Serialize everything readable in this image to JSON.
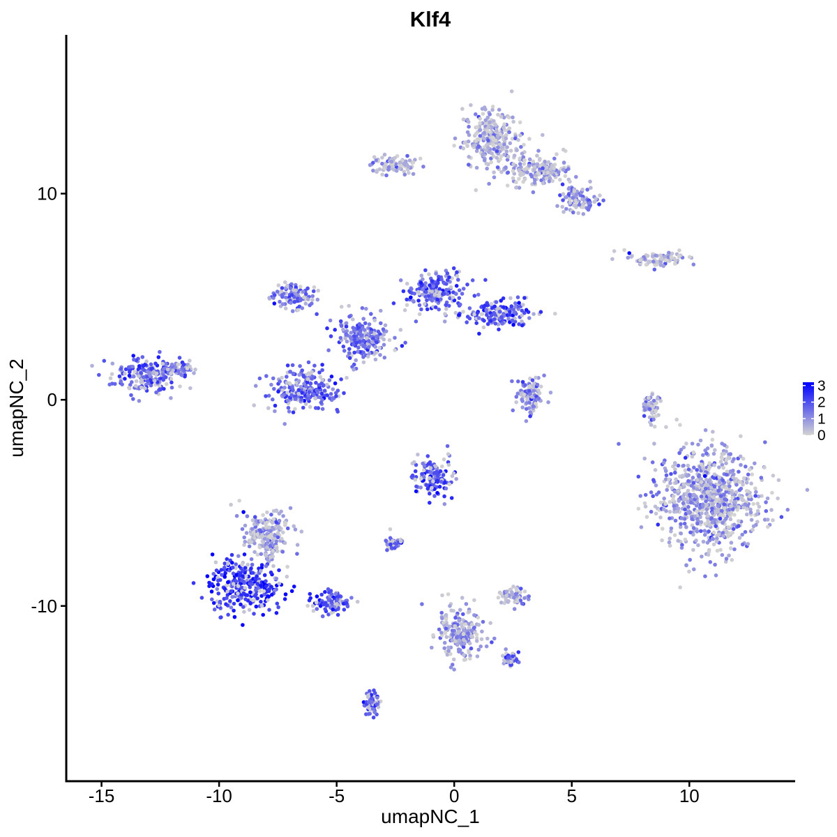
{
  "chart_data": {
    "type": "scatter",
    "title": "Klf4",
    "xlabel": "umapNC_1",
    "ylabel": "umapNC_2",
    "xlim": [
      -16.5,
      14.5
    ],
    "ylim": [
      -18.5,
      17.7
    ],
    "xticks": [
      -15,
      -10,
      -5,
      0,
      5,
      10
    ],
    "yticks": [
      -10,
      0,
      10
    ],
    "grid": false,
    "legend": {
      "placement": "right",
      "ticks": [
        0,
        1,
        2,
        3
      ],
      "color_low": "#d3d3d3",
      "color_high": "#0000ff",
      "range": [
        0,
        3.2
      ]
    },
    "clusters": [
      {
        "name": "",
        "center": [
          -13.2,
          1.1
        ],
        "spread": [
          1.2,
          0.8
        ],
        "expr": 1.8
      },
      {
        "name": "",
        "center": [
          -11.8,
          1.5
        ],
        "spread": [
          0.7,
          0.4
        ],
        "expr": 1.5
      },
      {
        "name": "",
        "center": [
          -6.4,
          0.5
        ],
        "spread": [
          1.3,
          0.9
        ],
        "expr": 1.7
      },
      {
        "name": "",
        "center": [
          -0.8,
          5.2
        ],
        "spread": [
          1.1,
          0.9
        ],
        "expr": 1.8
      },
      {
        "name": "",
        "center": [
          1.9,
          4.2
        ],
        "spread": [
          1.3,
          0.6
        ],
        "expr": 1.9
      },
      {
        "name": "",
        "center": [
          -6.8,
          5.0
        ],
        "spread": [
          0.8,
          0.6
        ],
        "expr": 1.4
      },
      {
        "name": "",
        "center": [
          -3.8,
          3.0
        ],
        "spread": [
          1.1,
          1.0
        ],
        "expr": 1.5
      },
      {
        "name": "",
        "center": [
          1.6,
          12.6
        ],
        "spread": [
          1.1,
          1.3
        ],
        "expr": 0.6
      },
      {
        "name": "",
        "center": [
          3.6,
          11.2
        ],
        "spread": [
          1.3,
          0.7
        ],
        "expr": 0.7
      },
      {
        "name": "",
        "center": [
          5.3,
          9.7
        ],
        "spread": [
          0.7,
          0.6
        ],
        "expr": 1.2
      },
      {
        "name": "",
        "center": [
          -2.6,
          11.4
        ],
        "spread": [
          0.9,
          0.4
        ],
        "expr": 0.6
      },
      {
        "name": "",
        "center": [
          8.6,
          6.8
        ],
        "spread": [
          1.2,
          0.3
        ],
        "expr": 0.5
      },
      {
        "name": "",
        "center": [
          3.2,
          0.2
        ],
        "spread": [
          0.6,
          0.8
        ],
        "expr": 1.2
      },
      {
        "name": "",
        "center": [
          10.9,
          -4.8
        ],
        "spread": [
          2.1,
          2.3
        ],
        "expr": 0.9
      },
      {
        "name": "",
        "center": [
          -0.9,
          -3.7
        ],
        "spread": [
          0.8,
          0.8
        ],
        "expr": 2.0
      },
      {
        "name": "",
        "center": [
          -2.6,
          -6.9
        ],
        "spread": [
          0.4,
          0.3
        ],
        "expr": 1.6
      },
      {
        "name": "",
        "center": [
          -8.9,
          -9.0
        ],
        "spread": [
          1.4,
          1.2
        ],
        "expr": 2.5
      },
      {
        "name": "",
        "center": [
          -8.0,
          -6.6
        ],
        "spread": [
          1.0,
          1.1
        ],
        "expr": 0.9
      },
      {
        "name": "",
        "center": [
          -5.2,
          -9.8
        ],
        "spread": [
          0.8,
          0.5
        ],
        "expr": 2.0
      },
      {
        "name": "",
        "center": [
          -3.5,
          -14.7
        ],
        "spread": [
          0.3,
          0.6
        ],
        "expr": 2.0
      },
      {
        "name": "",
        "center": [
          2.5,
          -9.5
        ],
        "spread": [
          0.6,
          0.4
        ],
        "expr": 1.0
      },
      {
        "name": "",
        "center": [
          2.4,
          -12.6
        ],
        "spread": [
          0.3,
          0.3
        ],
        "expr": 1.8
      },
      {
        "name": "",
        "center": [
          8.4,
          -0.4
        ],
        "spread": [
          0.3,
          0.7
        ],
        "expr": 0.6
      },
      {
        "name": "",
        "center": [
          0.3,
          -11.3
        ],
        "spread": [
          0.9,
          1.2
        ],
        "expr": 0.9
      }
    ]
  }
}
